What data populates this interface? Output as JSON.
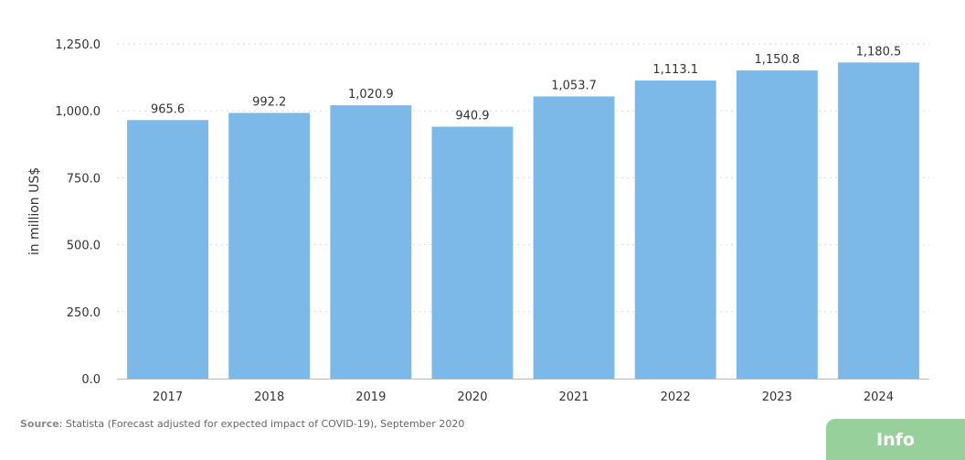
{
  "chart_data": {
    "type": "bar",
    "categories": [
      "2017",
      "2018",
      "2019",
      "2020",
      "2021",
      "2022",
      "2023",
      "2024"
    ],
    "values": [
      965.6,
      992.2,
      1020.9,
      940.9,
      1053.7,
      1113.1,
      1150.8,
      1180.5
    ],
    "value_labels": [
      "965.6",
      "992.2",
      "1,020.9",
      "940.9",
      "1,053.7",
      "1,113.1",
      "1,150.8",
      "1,180.5"
    ],
    "ylabel": "in million US$",
    "ylim": [
      0,
      1250
    ],
    "yticks": [
      0,
      250,
      500,
      750,
      1000,
      1250
    ],
    "ytick_labels": [
      "0.0",
      "250.0",
      "500.0",
      "750.0",
      "1,000.0",
      "1,250.0"
    ],
    "grid": true,
    "bar_color": "#7cb9e8"
  },
  "source": {
    "label": "Source",
    "text": ": Statista (Forecast adjusted for expected impact of COVID-19), September 2020"
  },
  "info_button": {
    "label": "Info",
    "color": "#97d09a"
  }
}
